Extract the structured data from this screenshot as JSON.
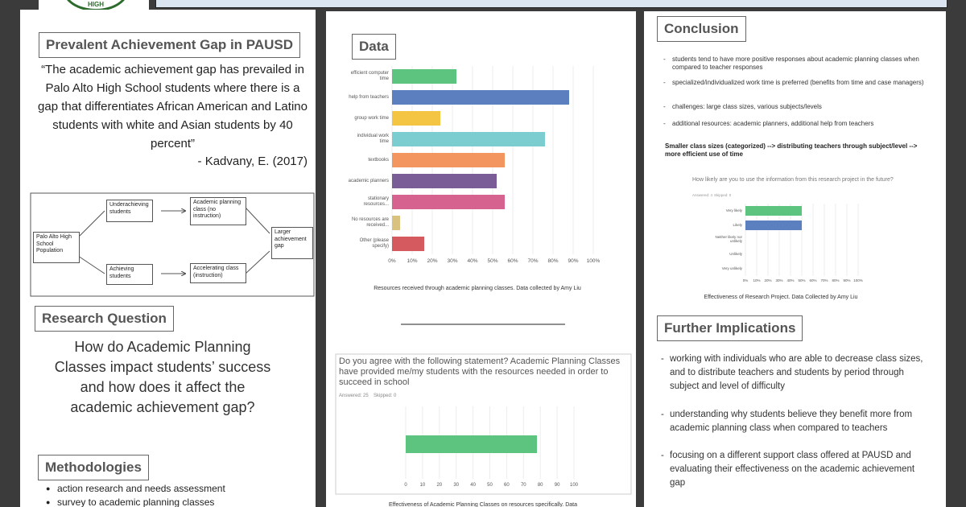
{
  "logo_text": "HIGH",
  "left": {
    "gap_heading": "Prevalent Achievement Gap in PAUSD",
    "quote": "“The academic achievement gap has prevailed in Palo Alto High School students where there is a gap that differentiates African American and Latino students with white and Asian students by 40 percent”",
    "citation": "- Kadvany, E. (2017)",
    "diagram": {
      "nodes": [
        "Palo Alto High School Population",
        "Underachieving students",
        "Achieving students",
        "Academic planning class (no instruction)",
        "Accelerating class (instruction)",
        "Larger achievement gap"
      ]
    },
    "question_heading": "Research Question",
    "question": "How do Academic Planning Classes impact students’ success and how does it affect the academic achievement gap?",
    "methods_heading": "Methodologies",
    "methods": [
      "action research and needs assessment",
      "survey to academic planning classes"
    ]
  },
  "middle": {
    "data_heading": "Data",
    "resources_chart": {
      "type": "bar",
      "categories": [
        "efficient computer time",
        "help from teachers",
        "group work time",
        "individual work time",
        "textbooks",
        "academic planners",
        "stationary resources...",
        "No resources are received...",
        "Other (please specify)"
      ],
      "values": [
        32,
        88,
        24,
        76,
        56,
        52,
        56,
        4,
        16
      ],
      "colors": [
        "#5cc47f",
        "#5b7fbf",
        "#f4c542",
        "#7ccdd0",
        "#f2955e",
        "#7a5c97",
        "#d6628f",
        "#d9c27f",
        "#d55a5f"
      ],
      "xlim": [
        0,
        100
      ],
      "xticks": [
        {
          "value": 0,
          "label": "0%"
        },
        {
          "value": 10,
          "label": "10%"
        },
        {
          "value": 20,
          "label": "20%"
        },
        {
          "value": 30,
          "label": "30%"
        },
        {
          "value": 40,
          "label": "40%"
        },
        {
          "value": 50,
          "label": "50%"
        },
        {
          "value": 60,
          "label": "60%"
        },
        {
          "value": 70,
          "label": "70%"
        },
        {
          "value": 80,
          "label": "80%"
        },
        {
          "value": 90,
          "label": "90%"
        },
        {
          "value": 100,
          "label": "100%"
        }
      ],
      "caption": "Resources received through academic planning classes. Data collected by Amy Liu"
    },
    "agree_chart": {
      "type": "bar",
      "question": "Do you agree with the following statement? Academic Planning Classes have provided me/my students with the resources needed in order to succeed in school",
      "answered": "Answered: 25",
      "skipped": "Skipped: 0",
      "values": [
        78
      ],
      "colors": [
        "#5cc47f"
      ],
      "xlim": [
        0,
        100
      ],
      "xticks": [
        0,
        10,
        20,
        30,
        40,
        50,
        60,
        70,
        80,
        90,
        100
      ],
      "caption": "Effectiveness of Academic Planning Classes on resources specifically. Data"
    }
  },
  "right": {
    "conclusion_heading": "Conclusion",
    "conclusions": [
      "students tend to have more positive responses about academic planning classes when compared to teacher responses",
      "specialized/individualized work time is preferred (benefits from time and case managers)",
      "challenges: large class sizes, various subjects/levels",
      "additional resources: academic planners, additional help from teachers"
    ],
    "summary": "Smaller class sizes (categorized) --> distributing teachers through subject/level --> more efficient use of time",
    "likely_chart": {
      "type": "bar",
      "question": "How likely are you to use the information from this research project in the future?",
      "answered": "Answered: 4",
      "skipped": "Skipped: 0",
      "categories": [
        "Very likely",
        "Likely",
        "Neither likely nor unlikely",
        "Unlikely",
        "Very unlikely"
      ],
      "values": [
        50,
        50,
        0,
        0,
        0
      ],
      "colors": [
        "#5cc47f",
        "#5b7fbf",
        "#f4c542",
        "#7ccdd0",
        "#f2955e"
      ],
      "xlim": [
        0,
        100
      ],
      "xticks": [
        {
          "value": 0,
          "label": "0%"
        },
        {
          "value": 10,
          "label": "10%"
        },
        {
          "value": 20,
          "label": "20%"
        },
        {
          "value": 30,
          "label": "30%"
        },
        {
          "value": 40,
          "label": "40%"
        },
        {
          "value": 50,
          "label": "50%"
        },
        {
          "value": 60,
          "label": "60%"
        },
        {
          "value": 70,
          "label": "70%"
        },
        {
          "value": 80,
          "label": "80%"
        },
        {
          "value": 90,
          "label": "90%"
        },
        {
          "value": 100,
          "label": "100%"
        }
      ],
      "caption": "Effectiveness of Research Project. Data Collected by Amy Liu"
    },
    "implications_heading": "Further Implications",
    "implications": [
      "working with individuals who are able to decrease class sizes, and to distribute teachers and students by period through subject and level of difficulty",
      "understanding why students believe they benefit more from academic planning class when compared to teachers",
      "focusing on a different support class offered at PAUSD and evaluating their effectiveness on the academic achievement gap"
    ]
  }
}
